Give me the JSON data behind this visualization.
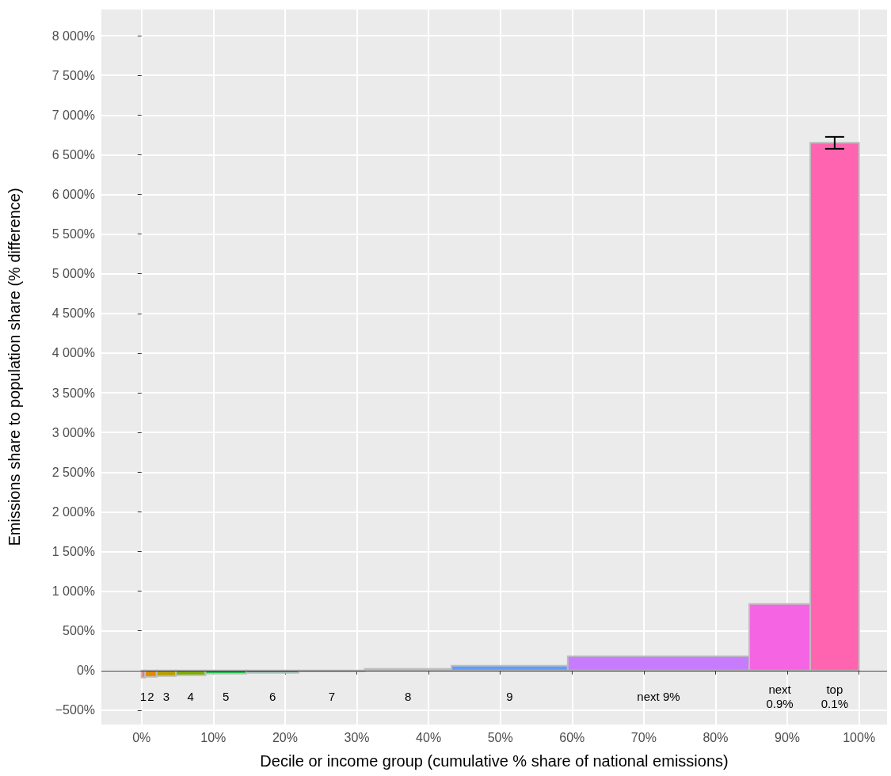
{
  "chart_data": {
    "type": "histogram",
    "xlabel": "Decile or income group (cumulative % share of national emissions)",
    "ylabel": "Emissions share to population share (% difference)",
    "bins": [
      0,
      0.5,
      2.1,
      4.8,
      8.9,
      14.6,
      21.9,
      31.1,
      43.2,
      59.4,
      84.7,
      93.2,
      100
    ],
    "values": [
      -90,
      -80,
      -70,
      -60,
      -40,
      -30,
      -10,
      20,
      60,
      180,
      840,
      6650
    ],
    "errors": [
      null,
      null,
      null,
      null,
      null,
      null,
      null,
      null,
      null,
      null,
      null,
      [
        6575,
        6725
      ]
    ],
    "colors": [
      "#f8766d",
      "#de8c00",
      "#b79f00",
      "#7cae00",
      "#00ba38",
      "#00c08b",
      "#00bfc4",
      "#00b4f0",
      "#619cff",
      "#c77cff",
      "#f564e3",
      "#ff64b0"
    ],
    "xlim": [
      -5.6,
      103.9
    ],
    "ylim": [
      -680,
      8330
    ],
    "xticks": [
      {
        "value": 0,
        "label": "0%"
      },
      {
        "value": 10,
        "label": "10%"
      },
      {
        "value": 20,
        "label": "20%"
      },
      {
        "value": 30,
        "label": "30%"
      },
      {
        "value": 40,
        "label": "40%"
      },
      {
        "value": 50,
        "label": "50%"
      },
      {
        "value": 60,
        "label": "60%"
      },
      {
        "value": 70,
        "label": "70%"
      },
      {
        "value": 80,
        "label": "80%"
      },
      {
        "value": 90,
        "label": "90%"
      },
      {
        "value": 100,
        "label": "100%"
      }
    ],
    "yticks": [
      {
        "value": -500,
        "label": "−500%"
      },
      {
        "value": 0,
        "label": "0%"
      },
      {
        "value": 500,
        "label": "500%"
      },
      {
        "value": 1000,
        "label": "1 000%"
      },
      {
        "value": 1500,
        "label": "1 500%"
      },
      {
        "value": 2000,
        "label": "2 000%"
      },
      {
        "value": 2500,
        "label": "2 500%"
      },
      {
        "value": 3000,
        "label": "3 000%"
      },
      {
        "value": 3500,
        "label": "3 500%"
      },
      {
        "value": 4000,
        "label": "4 000%"
      },
      {
        "value": 4500,
        "label": "4 500%"
      },
      {
        "value": 5000,
        "label": "5 000%"
      },
      {
        "value": 5500,
        "label": "5 500%"
      },
      {
        "value": 6000,
        "label": "6 000%"
      },
      {
        "value": 6500,
        "label": "6 500%"
      },
      {
        "value": 7000,
        "label": "7 000%"
      },
      {
        "value": 7500,
        "label": "7 500%"
      },
      {
        "value": 8000,
        "label": "8 000%"
      }
    ],
    "ref_lines": [
      {
        "axis": "y",
        "value": 0,
        "color": "#333333"
      }
    ],
    "grid": true,
    "annotations": [
      "1",
      "2",
      "3",
      "4",
      "5",
      "6",
      "7",
      "8",
      "9",
      "next 9%",
      "next\n0.9%",
      "top\n0.1%"
    ]
  }
}
